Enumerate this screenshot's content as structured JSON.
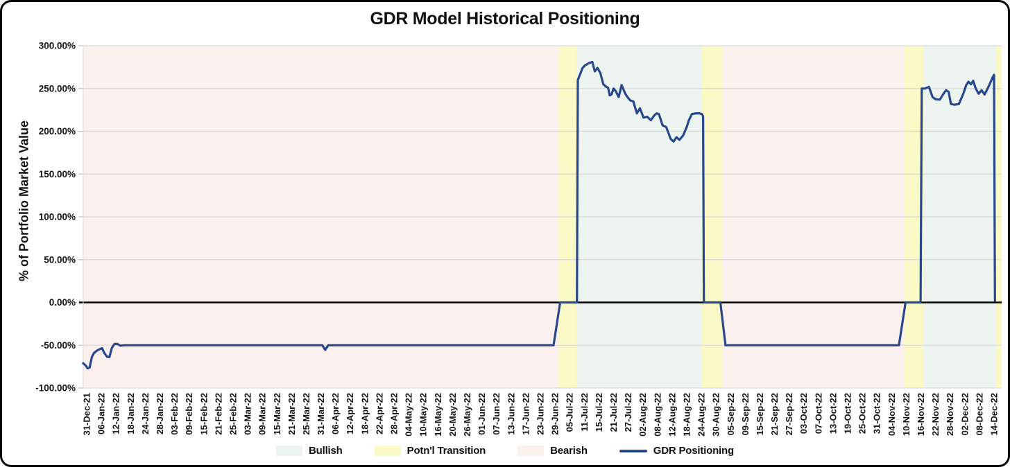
{
  "figure": {
    "title": "GDR Model Historical Positioning",
    "y_axis_title": "% of Portfolio Market Value"
  },
  "legend": {
    "items": [
      {
        "id": "bullish",
        "label": "Bullish",
        "type": "swatch",
        "color": "#edf4ef"
      },
      {
        "id": "potnl-transition",
        "label": "Potn'l Transition",
        "type": "swatch",
        "color": "#fbf9c6"
      },
      {
        "id": "bearish",
        "label": "Bearish",
        "type": "swatch",
        "color": "#fbf0ee"
      },
      {
        "id": "gdr-positioning",
        "label": "GDR Positioning",
        "type": "line",
        "color": "#27488e"
      }
    ]
  },
  "chart_data": {
    "type": "line",
    "title": "GDR Model Historical Positioning",
    "xlabel": "",
    "ylabel": "% of Portfolio Market Value",
    "ylim": [
      -100,
      300
    ],
    "grid": "horizontal",
    "legend_position": "bottom",
    "y_tick_values": [
      300,
      250,
      200,
      150,
      100,
      50,
      0,
      -50,
      -100
    ],
    "y_tick_labels": [
      "300.00%",
      "250.00%",
      "200.00%",
      "150.00%",
      "100.00%",
      "50.00%",
      "0.00%",
      "-50.00%",
      "-100.00%"
    ],
    "x_units": "index of x_tick_labels (1 tick = 4 business days)",
    "x_tick_labels": [
      "31-Dec-21",
      "06-Jan-22",
      "12-Jan-22",
      "18-Jan-22",
      "24-Jan-22",
      "28-Jan-22",
      "03-Feb-22",
      "09-Feb-22",
      "15-Feb-22",
      "21-Feb-22",
      "25-Feb-22",
      "03-Mar-22",
      "09-Mar-22",
      "15-Mar-22",
      "21-Mar-22",
      "25-Mar-22",
      "31-Mar-22",
      "06-Apr-22",
      "12-Apr-22",
      "18-Apr-22",
      "22-Apr-22",
      "28-Apr-22",
      "04-May-22",
      "10-May-22",
      "16-May-22",
      "20-May-22",
      "26-May-22",
      "01-Jun-22",
      "07-Jun-22",
      "13-Jun-22",
      "17-Jun-22",
      "23-Jun-22",
      "29-Jun-22",
      "05-Jul-22",
      "11-Jul-22",
      "15-Jul-22",
      "21-Jul-22",
      "27-Jul-22",
      "02-Aug-22",
      "08-Aug-22",
      "12-Aug-22",
      "18-Aug-22",
      "24-Aug-22",
      "30-Aug-22",
      "05-Sep-22",
      "09-Sep-22",
      "15-Sep-22",
      "21-Sep-22",
      "27-Sep-22",
      "03-Oct-22",
      "07-Oct-22",
      "13-Oct-22",
      "19-Oct-22",
      "25-Oct-22",
      "31-Oct-22",
      "04-Nov-22",
      "10-Nov-22",
      "16-Nov-22",
      "22-Nov-22",
      "28-Nov-22",
      "02-Dec-22",
      "08-Dec-22",
      "14-Dec-22"
    ],
    "region_colors": {
      "Bullish": "#edf4ef",
      "Potn'l Transition": "#fbf9c6",
      "Bearish": "#fbf0ee"
    },
    "regions": [
      {
        "label": "Bearish",
        "from": -0.24,
        "to": 32.23
      },
      {
        "label": "Potn'l Transition",
        "from": 32.23,
        "to": 33.46
      },
      {
        "label": "Bullish",
        "from": 33.46,
        "to": 42.04
      },
      {
        "label": "Potn'l Transition",
        "from": 42.04,
        "to": 43.42
      },
      {
        "label": "Bearish",
        "from": 43.42,
        "to": 55.89
      },
      {
        "label": "Potn'l Transition",
        "from": 55.89,
        "to": 57.21
      },
      {
        "label": "Bullish",
        "from": 57.21,
        "to": 62.14
      },
      {
        "label": "Potn'l Transition",
        "from": 62.14,
        "to": 62.52
      }
    ],
    "zero_line": true,
    "series": [
      {
        "name": "GDR Positioning",
        "color": "#27488e",
        "points": [
          [
            -0.24,
            -71
          ],
          [
            -0.05,
            -74
          ],
          [
            0.05,
            -77
          ],
          [
            0.2,
            -76
          ],
          [
            0.35,
            -64
          ],
          [
            0.5,
            -59
          ],
          [
            0.72,
            -56
          ],
          [
            0.9,
            -54.5
          ],
          [
            1.05,
            -53.5
          ],
          [
            1.2,
            -59
          ],
          [
            1.4,
            -63.5
          ],
          [
            1.55,
            -64
          ],
          [
            1.72,
            -53
          ],
          [
            1.9,
            -48.5
          ],
          [
            2.1,
            -48.5
          ],
          [
            2.3,
            -50.5
          ],
          [
            2.6,
            -50
          ],
          [
            16.1,
            -50
          ],
          [
            16.3,
            -55.5
          ],
          [
            16.5,
            -50
          ],
          [
            31.9,
            -50
          ],
          [
            32.35,
            0
          ],
          [
            33.5,
            0
          ],
          [
            33.56,
            260
          ],
          [
            33.72,
            267
          ],
          [
            33.88,
            274
          ],
          [
            34.05,
            277
          ],
          [
            34.35,
            280
          ],
          [
            34.55,
            281
          ],
          [
            34.72,
            270
          ],
          [
            34.9,
            274
          ],
          [
            35.1,
            268
          ],
          [
            35.3,
            255
          ],
          [
            35.5,
            252
          ],
          [
            35.62,
            251
          ],
          [
            35.74,
            242
          ],
          [
            35.86,
            243
          ],
          [
            36.0,
            250
          ],
          [
            36.15,
            247
          ],
          [
            36.35,
            240
          ],
          [
            36.55,
            254
          ],
          [
            36.8,
            244
          ],
          [
            36.95,
            240
          ],
          [
            37.15,
            236
          ],
          [
            37.35,
            235
          ],
          [
            37.47,
            228
          ],
          [
            37.6,
            221
          ],
          [
            37.8,
            227
          ],
          [
            38.05,
            216
          ],
          [
            38.3,
            217
          ],
          [
            38.55,
            213
          ],
          [
            38.8,
            219
          ],
          [
            38.95,
            221
          ],
          [
            39.1,
            220
          ],
          [
            39.35,
            207
          ],
          [
            39.6,
            205
          ],
          [
            39.75,
            198
          ],
          [
            39.9,
            191
          ],
          [
            40.1,
            188
          ],
          [
            40.3,
            193
          ],
          [
            40.5,
            190
          ],
          [
            40.75,
            195
          ],
          [
            41.0,
            205
          ],
          [
            41.15,
            213
          ],
          [
            41.35,
            220
          ],
          [
            41.6,
            221
          ],
          [
            41.85,
            221
          ],
          [
            42.05,
            220
          ],
          [
            42.12,
            217
          ],
          [
            42.17,
            0
          ],
          [
            43.3,
            0
          ],
          [
            43.65,
            -50
          ],
          [
            55.5,
            -50
          ],
          [
            55.95,
            0
          ],
          [
            56.98,
            0
          ],
          [
            57.06,
            250
          ],
          [
            57.3,
            250
          ],
          [
            57.55,
            252
          ],
          [
            57.8,
            240
          ],
          [
            58.0,
            237.5
          ],
          [
            58.3,
            237
          ],
          [
            58.55,
            244
          ],
          [
            58.72,
            248
          ],
          [
            58.9,
            246
          ],
          [
            59.05,
            232
          ],
          [
            59.3,
            231
          ],
          [
            59.6,
            232
          ],
          [
            59.9,
            244
          ],
          [
            60.1,
            254
          ],
          [
            60.25,
            258
          ],
          [
            60.42,
            255
          ],
          [
            60.58,
            259
          ],
          [
            60.75,
            250
          ],
          [
            60.95,
            244
          ],
          [
            61.15,
            248
          ],
          [
            61.35,
            243
          ],
          [
            61.65,
            253
          ],
          [
            61.9,
            263
          ],
          [
            62.0,
            266
          ],
          [
            62.06,
            2
          ]
        ]
      }
    ]
  },
  "style": {
    "gridline_color": "#d9d9d9",
    "zero_line_color": "#000000",
    "text_color": "#141414"
  }
}
